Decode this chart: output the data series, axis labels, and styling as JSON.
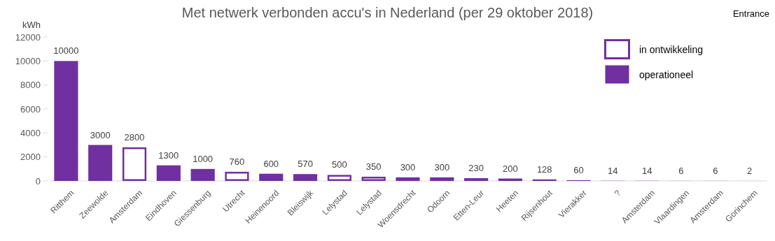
{
  "chart_data": {
    "type": "bar",
    "title": "Met netwerk verbonden accu's in Nederland (per 29 oktober 2018)",
    "ylabel": "kWh",
    "annotations": [
      "Entrance"
    ],
    "categories": [
      "Ritthem",
      "Zeewolde",
      "Amsterdam",
      "Eindhoven",
      "Giessenburg",
      "Utrecht",
      "Heinenoord",
      "Bleiswijk",
      "Lelystad",
      "Lelystad",
      "Woensdrecht",
      "Odoorn",
      "Etten-Leur",
      "Heeten",
      "Rijsenhout",
      "Vierakker",
      "?",
      "Amsterdam",
      "Vlaardingen",
      "Amsterdam",
      "Gorinchem"
    ],
    "series": [
      {
        "name": "in ontwikkeling",
        "color": "#7030a0",
        "values": [
          null,
          null,
          2800,
          null,
          null,
          760,
          null,
          null,
          500,
          350,
          null,
          null,
          null,
          200,
          null,
          null,
          null,
          null,
          null,
          null,
          null
        ]
      },
      {
        "name": "operationeel",
        "color": "#7030a0",
        "values": [
          10000,
          3000,
          null,
          1300,
          1000,
          null,
          600,
          570,
          null,
          null,
          300,
          300,
          230,
          null,
          128,
          60,
          14,
          14,
          6,
          6,
          2
        ]
      }
    ],
    "data_labels": true,
    "ylim": [
      0,
      12000
    ],
    "yticks": [
      0,
      2000,
      4000,
      6000,
      8000,
      10000,
      12000
    ],
    "legend": "top right",
    "grid": false
  }
}
